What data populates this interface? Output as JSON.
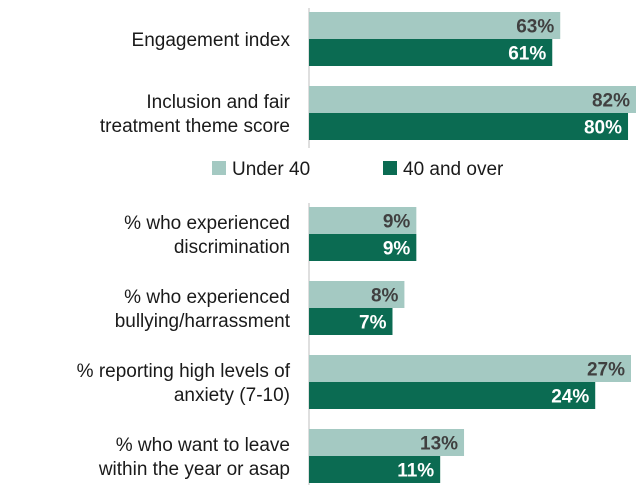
{
  "chart_data": [
    {
      "type": "bar",
      "orientation": "horizontal",
      "categories": [
        "Engagement index",
        "Inclusion and fair treatment theme score"
      ],
      "series": [
        {
          "name": "Under 40",
          "values": [
            63,
            82
          ]
        },
        {
          "name": "40 and over",
          "values": [
            61,
            80
          ]
        }
      ],
      "value_labels": [
        [
          "63%",
          "82%"
        ],
        [
          "61%",
          "80%"
        ]
      ],
      "xlim": [
        0,
        82
      ],
      "grid": false
    },
    {
      "type": "bar",
      "orientation": "horizontal",
      "categories": [
        "% who experienced discrimination",
        "% who experienced bullying/harrassment",
        "% reporting high levels of anxiety (7-10)",
        "% who want to leave within the year or asap"
      ],
      "series": [
        {
          "name": "Under 40",
          "values": [
            9,
            8,
            27,
            13
          ]
        },
        {
          "name": "40 and over",
          "values": [
            9,
            7,
            24,
            11
          ]
        }
      ],
      "value_labels": [
        [
          "9%",
          "8%",
          "27%",
          "13%"
        ],
        [
          "9%",
          "7%",
          "24%",
          "11%"
        ]
      ],
      "xlim": [
        0,
        27
      ],
      "grid": false
    }
  ],
  "labels": {
    "top": [
      [
        "Engagement index"
      ],
      [
        "Inclusion and fair",
        "treatment theme score"
      ]
    ],
    "bottom": [
      [
        "% who experienced",
        "discrimination"
      ],
      [
        "% who experienced",
        "bullying/harrassment"
      ],
      [
        "% reporting high levels of",
        "anxiety (7-10)"
      ],
      [
        "% who want to leave",
        "within the year or asap"
      ]
    ]
  },
  "legend": {
    "position": "center",
    "items": [
      {
        "label": "Under 40",
        "color": "#a4c9c2"
      },
      {
        "label": "40 and over",
        "color": "#0b6b52"
      }
    ]
  },
  "colors": {
    "under_40": "#a4c9c2",
    "over_40": "#0b6b52",
    "axis": "#bfbfbf",
    "label_on_light": "#404040",
    "label_on_dark": "#ffffff"
  }
}
